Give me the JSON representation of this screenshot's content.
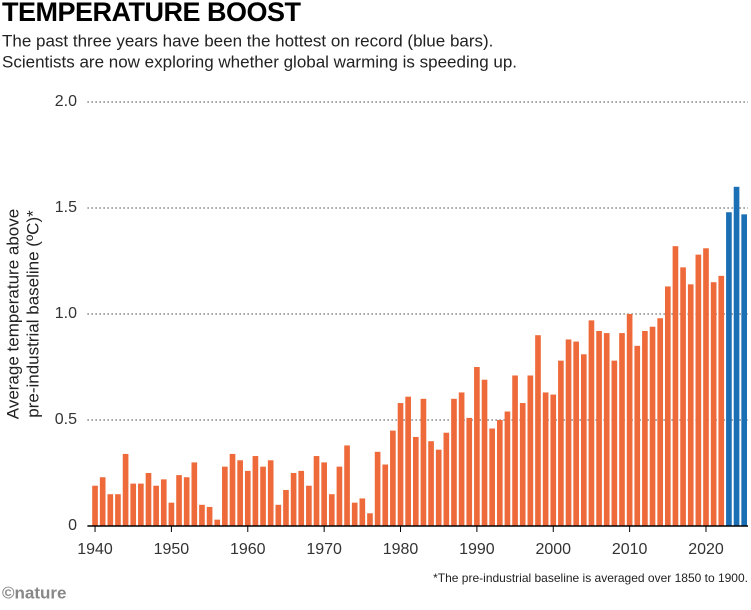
{
  "chart_data": {
    "type": "bar",
    "title": "TEMPERATURE BOOST",
    "subtitle": [
      "The past three years have been the hottest on record (blue bars).",
      "Scientists are now exploring whether global warming is speeding up."
    ],
    "y_label": [
      "Average temperature above",
      "pre-industrial baseline (ºC)*"
    ],
    "footnote": "*The pre-industrial baseline is averaged over 1850 to 1900.",
    "source": "©nature",
    "x": [
      1940,
      1941,
      1942,
      1943,
      1944,
      1945,
      1946,
      1947,
      1948,
      1949,
      1950,
      1951,
      1952,
      1953,
      1954,
      1955,
      1956,
      1957,
      1958,
      1959,
      1960,
      1961,
      1962,
      1963,
      1964,
      1965,
      1966,
      1967,
      1968,
      1969,
      1970,
      1971,
      1972,
      1973,
      1974,
      1975,
      1976,
      1977,
      1978,
      1979,
      1980,
      1981,
      1982,
      1983,
      1984,
      1985,
      1986,
      1987,
      1988,
      1989,
      1990,
      1991,
      1992,
      1993,
      1994,
      1995,
      1996,
      1997,
      1998,
      1999,
      2000,
      2001,
      2002,
      2003,
      2004,
      2005,
      2006,
      2007,
      2008,
      2009,
      2010,
      2011,
      2012,
      2013,
      2014,
      2015,
      2016,
      2017,
      2018,
      2019,
      2020,
      2021,
      2022,
      2023,
      2024,
      2025
    ],
    "values": [
      0.19,
      0.23,
      0.15,
      0.15,
      0.34,
      0.2,
      0.2,
      0.25,
      0.19,
      0.22,
      0.11,
      0.24,
      0.23,
      0.3,
      0.1,
      0.09,
      0.03,
      0.28,
      0.34,
      0.31,
      0.26,
      0.33,
      0.28,
      0.31,
      0.1,
      0.17,
      0.25,
      0.26,
      0.19,
      0.33,
      0.3,
      0.15,
      0.28,
      0.38,
      0.11,
      0.13,
      0.06,
      0.35,
      0.29,
      0.45,
      0.58,
      0.61,
      0.42,
      0.6,
      0.4,
      0.36,
      0.44,
      0.6,
      0.63,
      0.51,
      0.75,
      0.69,
      0.46,
      0.5,
      0.54,
      0.71,
      0.58,
      0.71,
      0.9,
      0.63,
      0.62,
      0.78,
      0.88,
      0.87,
      0.81,
      0.97,
      0.92,
      0.91,
      0.78,
      0.91,
      1.0,
      0.85,
      0.92,
      0.94,
      0.98,
      1.13,
      1.32,
      1.22,
      1.14,
      1.28,
      1.31,
      1.15,
      1.18,
      1.48,
      1.6,
      1.47
    ],
    "color": "#ee6a3b",
    "highlight_color": "#1b6fb5",
    "highlight_count": 3,
    "xlim": [
      1939,
      2025.5
    ],
    "xticks": [
      1940,
      1950,
      1960,
      1970,
      1980,
      1990,
      2000,
      2010,
      2020
    ],
    "ylim": [
      0,
      2
    ],
    "yticks": [
      0,
      0.5,
      {
        "value": 1,
        "label": "1.0"
      },
      {
        "value": 1.5,
        "label": "1.5"
      },
      {
        "value": 2,
        "label": "2.0"
      }
    ],
    "grid": true
  }
}
